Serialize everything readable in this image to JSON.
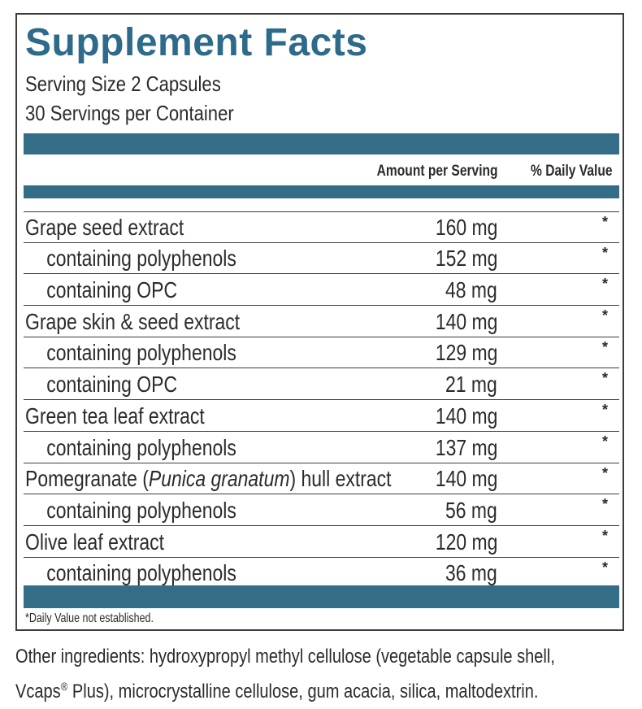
{
  "title": "Supplement Facts",
  "serving_size": "Serving Size 2 Capsules",
  "servings_per_container": "30 Servings per Container",
  "headers": {
    "amount": "Amount per Serving",
    "daily_value": "% Daily Value"
  },
  "rows": [
    {
      "name": "Grape seed extract",
      "amount": "160 mg",
      "dv": "*",
      "sub": false
    },
    {
      "name": "containing polyphenols",
      "amount": "152 mg",
      "dv": "*",
      "sub": true
    },
    {
      "name": "containing OPC",
      "amount": "48 mg",
      "dv": "*",
      "sub": true
    },
    {
      "name": "Grape skin & seed extract",
      "amount": "140 mg",
      "dv": "*",
      "sub": false
    },
    {
      "name": "containing polyphenols",
      "amount": "129 mg",
      "dv": "*",
      "sub": true
    },
    {
      "name": "containing OPC",
      "amount": "21 mg",
      "dv": "*",
      "sub": true
    },
    {
      "name": "Green tea leaf extract",
      "amount": "140 mg",
      "dv": "*",
      "sub": false
    },
    {
      "name": "containing polyphenols",
      "amount": "137 mg",
      "dv": "*",
      "sub": true
    },
    {
      "name_pre": "Pomegranate (",
      "name_italic": "Punica granatum",
      "name_post": ") hull extract",
      "amount": "140 mg",
      "dv": "*",
      "sub": false
    },
    {
      "name": "containing polyphenols",
      "amount": "56 mg",
      "dv": "*",
      "sub": true
    },
    {
      "name": "Olive leaf extract",
      "amount": "120 mg",
      "dv": "*",
      "sub": false
    },
    {
      "name": "containing polyphenols",
      "amount": "36 mg",
      "dv": "*",
      "sub": true
    }
  ],
  "footnote": "*Daily Value not established.",
  "other_ingredients": {
    "line1": "Other ingredients: hydroxypropyl methyl cellulose (vegetable capsule shell,",
    "line2_pre": "Vcaps",
    "line2_sup": "®",
    "line2_post": " Plus), microcrystalline cellulose, gum acacia, silica, maltodextrin."
  },
  "colors": {
    "accent": "#336e86",
    "title": "#2e6b8a"
  }
}
